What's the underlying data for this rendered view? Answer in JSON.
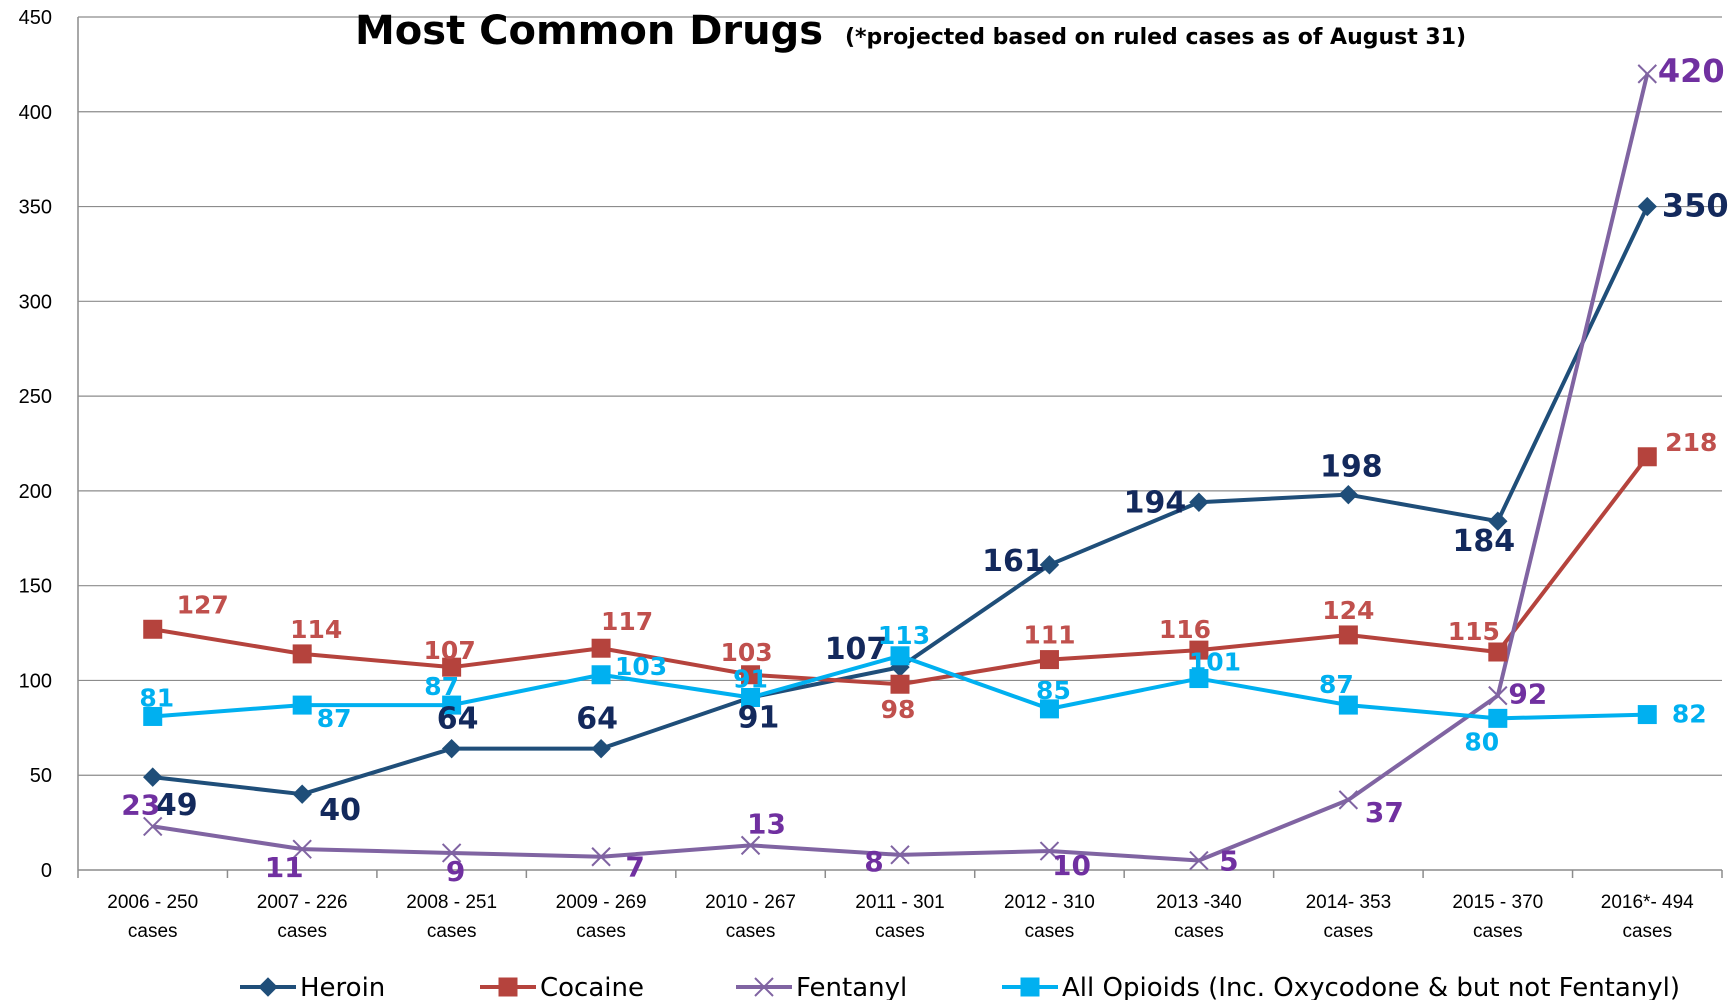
{
  "chart_data": {
    "type": "line",
    "title": "Most Common Drugs",
    "subtitle": "(*projected based on ruled cases as of August 31)",
    "categories": [
      [
        "2006 - 250",
        "cases"
      ],
      [
        "2007 - 226",
        "cases"
      ],
      [
        "2008 - 251",
        "cases"
      ],
      [
        "2009 - 269",
        "cases"
      ],
      [
        "2010 - 267",
        "cases"
      ],
      [
        "2011 - 301",
        "cases"
      ],
      [
        "2012 - 310",
        "cases"
      ],
      [
        "2013 -340",
        "cases"
      ],
      [
        "2014- 353",
        "cases"
      ],
      [
        "2015 - 370",
        "cases"
      ],
      [
        "2016*- 494",
        "cases"
      ]
    ],
    "ylim": [
      0,
      450
    ],
    "yticks": [
      0,
      50,
      100,
      150,
      200,
      250,
      300,
      350,
      400,
      450
    ],
    "grid": true,
    "legend_position": "bottom",
    "series": [
      {
        "name": "Heroin",
        "marker": "diamond",
        "color": "#1F4E79",
        "label_color": "#13295C",
        "values": [
          49,
          40,
          64,
          64,
          91,
          107,
          161,
          194,
          198,
          184,
          350
        ]
      },
      {
        "name": "Cocaine",
        "marker": "square",
        "color": "#B5433D",
        "label_color": "#C0504D",
        "values": [
          127,
          114,
          107,
          117,
          103,
          98,
          111,
          116,
          124,
          115,
          218
        ]
      },
      {
        "name": "Fentanyl",
        "marker": "x",
        "color": "#8064A2",
        "label_color": "#7030A0",
        "values": [
          23,
          11,
          9,
          7,
          13,
          8,
          10,
          5,
          37,
          92,
          420
        ]
      },
      {
        "name": "All Opioids (Inc. Oxycodone & but not Fentanyl)",
        "marker": "square",
        "color": "#00B0F0",
        "label_color": "#00B0F0",
        "values": [
          81,
          87,
          87,
          103,
          91,
          113,
          85,
          101,
          87,
          80,
          82
        ]
      }
    ]
  }
}
